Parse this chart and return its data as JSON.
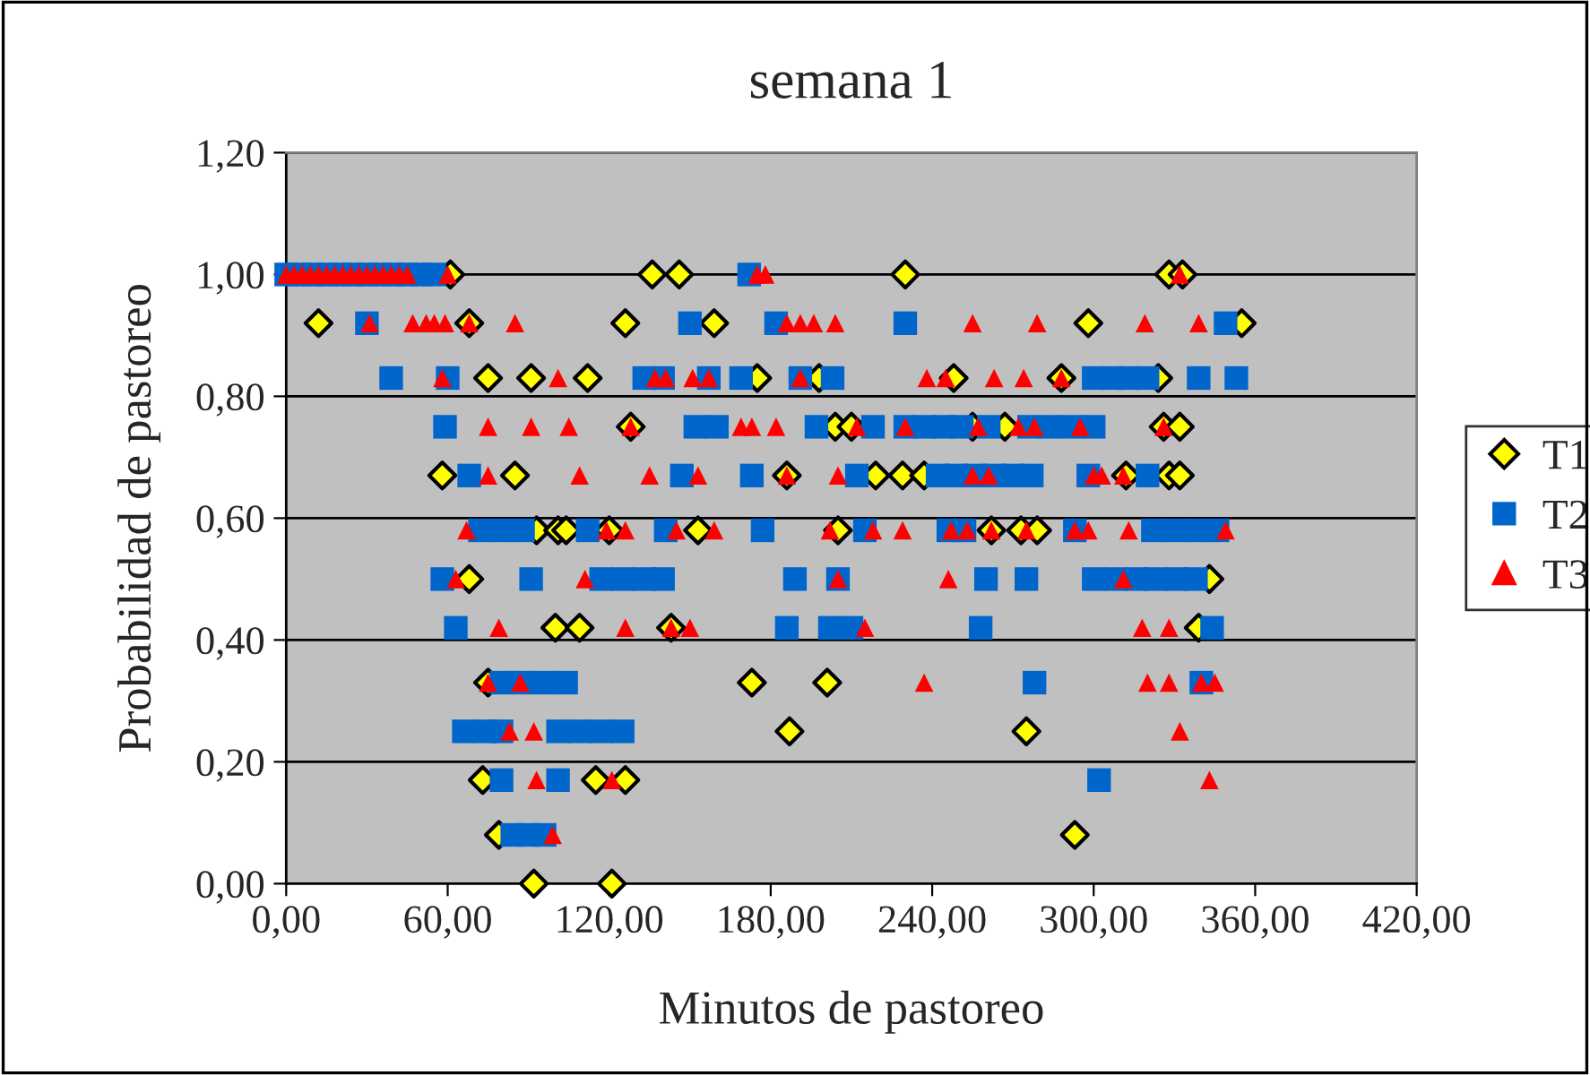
{
  "chart_data": {
    "type": "scatter",
    "title": "semana 1",
    "xlabel": "Minutos de pastoreo",
    "ylabel": "Probabilidad de pastoreo",
    "xlim": [
      0,
      420
    ],
    "ylim": [
      0,
      1.2
    ],
    "xticks": [
      {
        "value": 0,
        "label": "0,00"
      },
      {
        "value": 60,
        "label": "60,00"
      },
      {
        "value": 120,
        "label": "120,00"
      },
      {
        "value": 180,
        "label": "180,00"
      },
      {
        "value": 240,
        "label": "240,00"
      },
      {
        "value": 300,
        "label": "300,00"
      },
      {
        "value": 360,
        "label": "360,00"
      },
      {
        "value": 420,
        "label": "420,00"
      }
    ],
    "yticks": [
      {
        "value": 0,
        "label": "0,00"
      },
      {
        "value": 0.2,
        "label": "0,20"
      },
      {
        "value": 0.4,
        "label": "0,40"
      },
      {
        "value": 0.6,
        "label": "0,60"
      },
      {
        "value": 0.8,
        "label": "0,80"
      },
      {
        "value": 1.0,
        "label": "1,00"
      },
      {
        "value": 1.2,
        "label": "1,20"
      }
    ],
    "grid": "y",
    "legend": "right",
    "series": [
      {
        "name": "T1",
        "color": "#ffff00",
        "marker": "diamond",
        "x": [
          61,
          136,
          146,
          230,
          328,
          333,
          12,
          68,
          126,
          159,
          298,
          355,
          75,
          91,
          112,
          175,
          198,
          248,
          288,
          324,
          128,
          204,
          210,
          255,
          267,
          326,
          332,
          58,
          85,
          186,
          219,
          229,
          237,
          312,
          328,
          332,
          93,
          101,
          104,
          120,
          153,
          205,
          262,
          273,
          279,
          68,
          343,
          100,
          109,
          143,
          339,
          75,
          173,
          201,
          187,
          275,
          73,
          115,
          126,
          79,
          293,
          92,
          121
        ],
        "values": [
          1,
          1,
          1,
          1,
          1,
          1,
          0.92,
          0.92,
          0.92,
          0.92,
          0.92,
          0.92,
          0.83,
          0.83,
          0.83,
          0.83,
          0.83,
          0.83,
          0.83,
          0.83,
          0.75,
          0.75,
          0.75,
          0.75,
          0.75,
          0.75,
          0.75,
          0.67,
          0.67,
          0.67,
          0.67,
          0.67,
          0.67,
          0.67,
          0.67,
          0.67,
          0.58,
          0.58,
          0.58,
          0.58,
          0.58,
          0.58,
          0.58,
          0.58,
          0.58,
          0.5,
          0.5,
          0.42,
          0.42,
          0.42,
          0.42,
          0.33,
          0.33,
          0.33,
          0.25,
          0.25,
          0.17,
          0.17,
          0.17,
          0.08,
          0.08,
          0,
          0
        ]
      },
      {
        "name": "T2",
        "color": "#0066cc",
        "marker": "square",
        "x": [
          0,
          5,
          10,
          15,
          20,
          25,
          30,
          35,
          40,
          45,
          50,
          55,
          172,
          30,
          150,
          182,
          230,
          349,
          39,
          60,
          133,
          140,
          157,
          169,
          191,
          203,
          300,
          307,
          313,
          320,
          339,
          353,
          59,
          152,
          160,
          197,
          218,
          230,
          237,
          244,
          251,
          261,
          276,
          284,
          292,
          300,
          68,
          147,
          173,
          212,
          242,
          249,
          256,
          263,
          270,
          277,
          298,
          320,
          72,
          80,
          88,
          112,
          141,
          177,
          215,
          246,
          252,
          293,
          322,
          330,
          338,
          346,
          58,
          91,
          117,
          125,
          133,
          140,
          189,
          205,
          260,
          275,
          300,
          308,
          316,
          323,
          331,
          338,
          63,
          186,
          202,
          210,
          258,
          344,
          80,
          88,
          96,
          104,
          278,
          340,
          66,
          74,
          80,
          101,
          109,
          117,
          125,
          80,
          101,
          302,
          84,
          90,
          96
        ],
        "values": [
          1,
          1,
          1,
          1,
          1,
          1,
          1,
          1,
          1,
          1,
          1,
          1,
          1,
          0.92,
          0.92,
          0.92,
          0.92,
          0.92,
          0.83,
          0.83,
          0.83,
          0.83,
          0.83,
          0.83,
          0.83,
          0.83,
          0.83,
          0.83,
          0.83,
          0.83,
          0.83,
          0.83,
          0.75,
          0.75,
          0.75,
          0.75,
          0.75,
          0.75,
          0.75,
          0.75,
          0.75,
          0.75,
          0.75,
          0.75,
          0.75,
          0.75,
          0.67,
          0.67,
          0.67,
          0.67,
          0.67,
          0.67,
          0.67,
          0.67,
          0.67,
          0.67,
          0.67,
          0.67,
          0.58,
          0.58,
          0.58,
          0.58,
          0.58,
          0.58,
          0.58,
          0.58,
          0.58,
          0.58,
          0.58,
          0.58,
          0.58,
          0.58,
          0.5,
          0.5,
          0.5,
          0.5,
          0.5,
          0.5,
          0.5,
          0.5,
          0.5,
          0.5,
          0.5,
          0.5,
          0.5,
          0.5,
          0.5,
          0.5,
          0.42,
          0.42,
          0.42,
          0.42,
          0.42,
          0.42,
          0.33,
          0.33,
          0.33,
          0.33,
          0.33,
          0.33,
          0.25,
          0.25,
          0.25,
          0.25,
          0.25,
          0.25,
          0.25,
          0.17,
          0.17,
          0.17,
          0.08,
          0.08,
          0.08
        ]
      },
      {
        "name": "T3",
        "color": "#ff0000",
        "marker": "triangle",
        "x": [
          0,
          3,
          6,
          9,
          12,
          15,
          18,
          21,
          24,
          27,
          30,
          33,
          36,
          39,
          42,
          45,
          60,
          175,
          178,
          332,
          31,
          47,
          52,
          55,
          59,
          68,
          85,
          186,
          191,
          196,
          204,
          255,
          279,
          319,
          339,
          58,
          101,
          137,
          141,
          151,
          157,
          191,
          238,
          245,
          263,
          274,
          288,
          75,
          91,
          105,
          128,
          169,
          173,
          182,
          212,
          230,
          257,
          272,
          278,
          295,
          326,
          75,
          109,
          135,
          153,
          186,
          205,
          255,
          261,
          300,
          303,
          311,
          67,
          119,
          126,
          145,
          159,
          202,
          218,
          229,
          247,
          253,
          262,
          275,
          293,
          298,
          313,
          349,
          63,
          111,
          205,
          246,
          311,
          79,
          126,
          143,
          150,
          215,
          318,
          328,
          75,
          87,
          237,
          320,
          328,
          340,
          345,
          83,
          92,
          332,
          93,
          121,
          343,
          99
        ],
        "values": [
          1,
          1,
          1,
          1,
          1,
          1,
          1,
          1,
          1,
          1,
          1,
          1,
          1,
          1,
          1,
          1,
          1,
          1,
          1,
          1,
          0.92,
          0.92,
          0.92,
          0.92,
          0.92,
          0.92,
          0.92,
          0.92,
          0.92,
          0.92,
          0.92,
          0.92,
          0.92,
          0.92,
          0.92,
          0.83,
          0.83,
          0.83,
          0.83,
          0.83,
          0.83,
          0.83,
          0.83,
          0.83,
          0.83,
          0.83,
          0.83,
          0.75,
          0.75,
          0.75,
          0.75,
          0.75,
          0.75,
          0.75,
          0.75,
          0.75,
          0.75,
          0.75,
          0.75,
          0.75,
          0.75,
          0.67,
          0.67,
          0.67,
          0.67,
          0.67,
          0.67,
          0.67,
          0.67,
          0.67,
          0.67,
          0.67,
          0.58,
          0.58,
          0.58,
          0.58,
          0.58,
          0.58,
          0.58,
          0.58,
          0.58,
          0.58,
          0.58,
          0.58,
          0.58,
          0.58,
          0.58,
          0.58,
          0.5,
          0.5,
          0.5,
          0.5,
          0.5,
          0.42,
          0.42,
          0.42,
          0.42,
          0.42,
          0.42,
          0.42,
          0.33,
          0.33,
          0.33,
          0.33,
          0.33,
          0.33,
          0.33,
          0.25,
          0.25,
          0.25,
          0.17,
          0.17,
          0.17,
          0.08
        ]
      }
    ]
  }
}
